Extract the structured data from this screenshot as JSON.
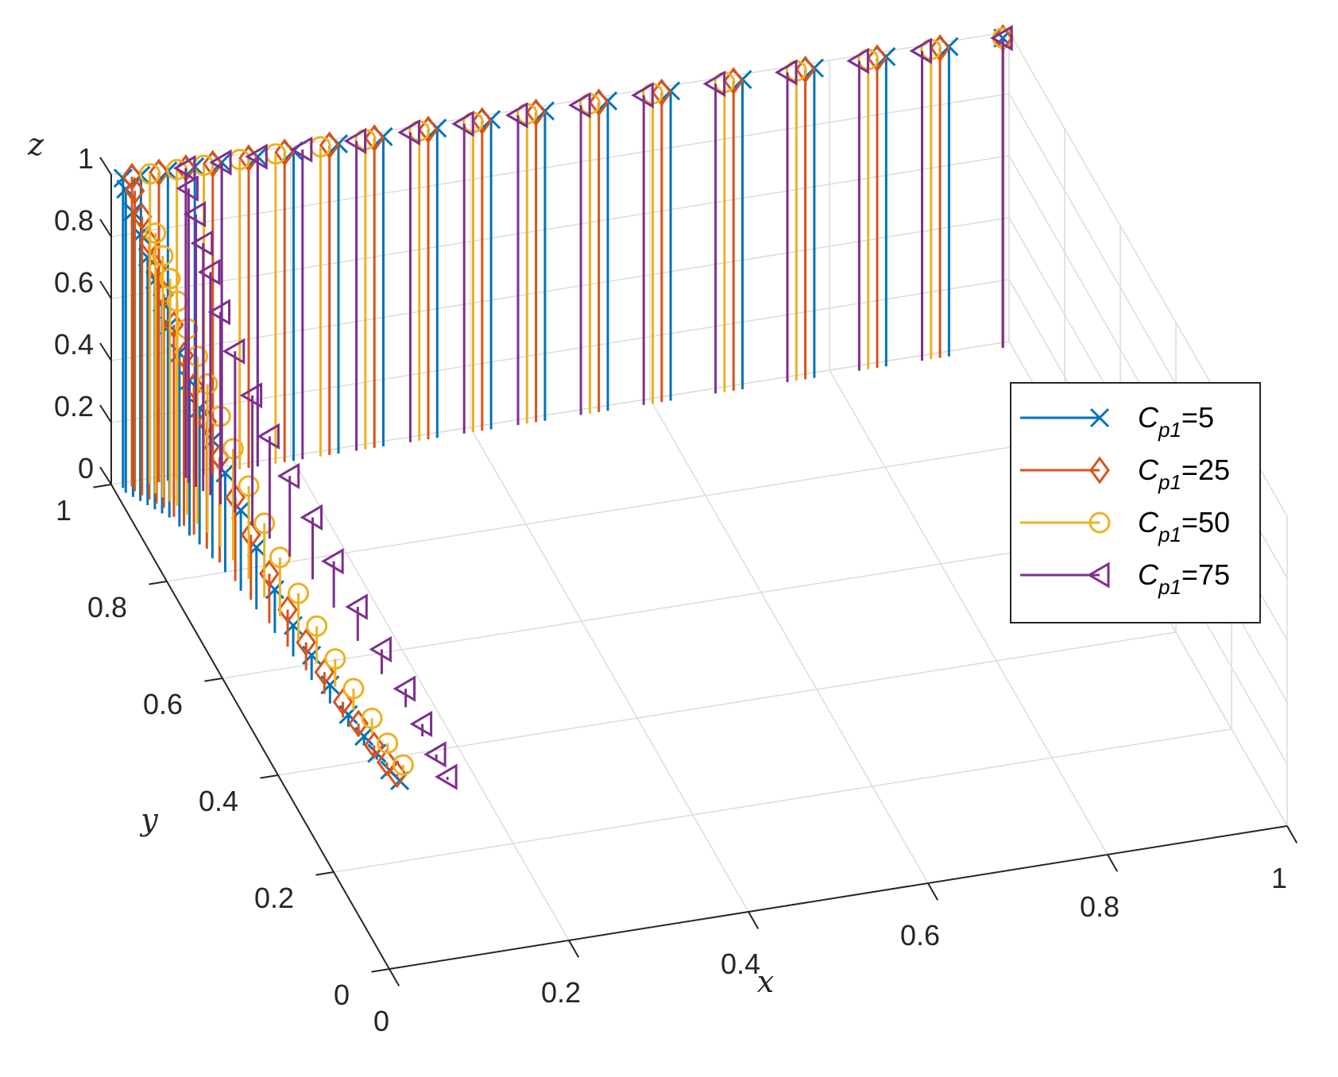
{
  "chart_data": {
    "type": "stem3",
    "title": "",
    "xlabel": "x",
    "ylabel": "y",
    "zlabel": "z",
    "xlim": [
      0,
      1
    ],
    "ylim": [
      0,
      1
    ],
    "zlim": [
      0,
      1
    ],
    "x_ticks": [
      "0",
      "0.2",
      "0.4",
      "0.6",
      "0.8",
      "1"
    ],
    "y_ticks": [
      "0",
      "0.2",
      "0.4",
      "0.6",
      "0.8",
      "1"
    ],
    "z_ticks": [
      "0",
      "0.2",
      "0.4",
      "0.6",
      "0.8",
      "1"
    ],
    "grid": true,
    "legend_position": "right",
    "series": [
      {
        "name": "C_p1=5",
        "legend_symbol": "C",
        "legend_sub": "p1",
        "legend_value": "=5",
        "marker": "x",
        "color": "#0072BD",
        "points": [
          [
            0.01,
            0.99,
            1.0
          ],
          [
            0.03,
            0.99,
            1.0
          ],
          [
            0.06,
            0.99,
            1.0
          ],
          [
            0.09,
            0.99,
            1.0
          ],
          [
            0.12,
            0.99,
            1.0
          ],
          [
            0.16,
            0.99,
            1.0
          ],
          [
            0.2,
            0.99,
            1.0
          ],
          [
            0.25,
            0.99,
            1.0
          ],
          [
            0.3,
            0.99,
            1.0
          ],
          [
            0.36,
            0.99,
            1.0
          ],
          [
            0.42,
            0.99,
            1.0
          ],
          [
            0.48,
            0.99,
            1.0
          ],
          [
            0.55,
            0.99,
            1.0
          ],
          [
            0.62,
            0.99,
            1.0
          ],
          [
            0.7,
            0.99,
            1.0
          ],
          [
            0.78,
            0.99,
            1.0
          ],
          [
            0.86,
            0.99,
            1.0
          ],
          [
            0.93,
            0.99,
            1.0
          ],
          [
            0.99,
            0.99,
            1.0
          ],
          [
            0.01,
            0.98,
            0.98
          ],
          [
            0.015,
            0.97,
            0.92
          ],
          [
            0.02,
            0.96,
            0.86
          ],
          [
            0.025,
            0.95,
            0.8
          ],
          [
            0.03,
            0.94,
            0.74
          ],
          [
            0.035,
            0.93,
            0.68
          ],
          [
            0.04,
            0.92,
            0.62
          ],
          [
            0.045,
            0.9,
            0.56
          ],
          [
            0.05,
            0.88,
            0.5
          ],
          [
            0.055,
            0.86,
            0.44
          ],
          [
            0.06,
            0.83,
            0.38
          ],
          [
            0.065,
            0.8,
            0.32
          ],
          [
            0.07,
            0.76,
            0.26
          ],
          [
            0.075,
            0.72,
            0.2
          ],
          [
            0.08,
            0.67,
            0.14
          ],
          [
            0.085,
            0.62,
            0.1
          ],
          [
            0.09,
            0.57,
            0.08
          ],
          [
            0.095,
            0.52,
            0.06
          ],
          [
            0.1,
            0.47,
            0.04
          ],
          [
            0.105,
            0.43,
            0.03
          ],
          [
            0.11,
            0.4,
            0.02
          ],
          [
            0.115,
            0.37,
            0.01
          ],
          [
            0.12,
            0.35,
            0.005
          ]
        ]
      },
      {
        "name": "C_p1=25",
        "legend_symbol": "C",
        "legend_sub": "p1",
        "legend_value": "=25",
        "marker": "diamond",
        "color": "#D95319",
        "points": [
          [
            0.02,
            0.99,
            1.0
          ],
          [
            0.05,
            0.99,
            1.0
          ],
          [
            0.08,
            0.99,
            1.0
          ],
          [
            0.11,
            0.99,
            1.0
          ],
          [
            0.15,
            0.99,
            1.0
          ],
          [
            0.19,
            0.99,
            1.0
          ],
          [
            0.24,
            0.99,
            1.0
          ],
          [
            0.29,
            0.99,
            1.0
          ],
          [
            0.35,
            0.99,
            1.0
          ],
          [
            0.41,
            0.99,
            1.0
          ],
          [
            0.47,
            0.99,
            1.0
          ],
          [
            0.54,
            0.99,
            1.0
          ],
          [
            0.61,
            0.99,
            1.0
          ],
          [
            0.69,
            0.99,
            1.0
          ],
          [
            0.77,
            0.99,
            1.0
          ],
          [
            0.85,
            0.99,
            1.0
          ],
          [
            0.92,
            0.99,
            1.0
          ],
          [
            0.99,
            0.99,
            1.0
          ],
          [
            0.02,
            0.98,
            0.97
          ],
          [
            0.025,
            0.97,
            0.9
          ],
          [
            0.03,
            0.96,
            0.83
          ],
          [
            0.035,
            0.95,
            0.76
          ],
          [
            0.04,
            0.94,
            0.69
          ],
          [
            0.045,
            0.92,
            0.62
          ],
          [
            0.05,
            0.9,
            0.55
          ],
          [
            0.055,
            0.88,
            0.48
          ],
          [
            0.06,
            0.85,
            0.41
          ],
          [
            0.065,
            0.82,
            0.34
          ],
          [
            0.07,
            0.78,
            0.27
          ],
          [
            0.075,
            0.74,
            0.21
          ],
          [
            0.08,
            0.69,
            0.16
          ],
          [
            0.085,
            0.64,
            0.12
          ],
          [
            0.09,
            0.59,
            0.09
          ],
          [
            0.095,
            0.54,
            0.07
          ],
          [
            0.1,
            0.49,
            0.05
          ],
          [
            0.105,
            0.45,
            0.04
          ],
          [
            0.11,
            0.41,
            0.03
          ],
          [
            0.115,
            0.38,
            0.02
          ],
          [
            0.12,
            0.36,
            0.01
          ]
        ]
      },
      {
        "name": "C_p1=50",
        "legend_symbol": "C",
        "legend_sub": "p1",
        "legend_value": "=50",
        "marker": "o",
        "color": "#EDB120",
        "points": [
          [
            0.04,
            0.99,
            1.0
          ],
          [
            0.07,
            0.99,
            1.0
          ],
          [
            0.1,
            0.99,
            1.0
          ],
          [
            0.14,
            0.99,
            1.0
          ],
          [
            0.18,
            0.99,
            1.0
          ],
          [
            0.23,
            0.99,
            1.0
          ],
          [
            0.28,
            0.99,
            1.0
          ],
          [
            0.34,
            0.99,
            1.0
          ],
          [
            0.4,
            0.99,
            1.0
          ],
          [
            0.46,
            0.99,
            1.0
          ],
          [
            0.53,
            0.99,
            1.0
          ],
          [
            0.6,
            0.99,
            1.0
          ],
          [
            0.68,
            0.99,
            1.0
          ],
          [
            0.76,
            0.99,
            1.0
          ],
          [
            0.84,
            0.99,
            1.0
          ],
          [
            0.91,
            0.99,
            1.0
          ],
          [
            0.99,
            0.99,
            1.0
          ],
          [
            0.04,
            0.97,
            0.84
          ],
          [
            0.045,
            0.96,
            0.78
          ],
          [
            0.05,
            0.95,
            0.72
          ],
          [
            0.055,
            0.94,
            0.66
          ],
          [
            0.06,
            0.92,
            0.6
          ],
          [
            0.065,
            0.9,
            0.54
          ],
          [
            0.07,
            0.88,
            0.48
          ],
          [
            0.075,
            0.85,
            0.42
          ],
          [
            0.08,
            0.82,
            0.36
          ],
          [
            0.085,
            0.78,
            0.3
          ],
          [
            0.09,
            0.74,
            0.24
          ],
          [
            0.095,
            0.7,
            0.19
          ],
          [
            0.1,
            0.65,
            0.15
          ],
          [
            0.105,
            0.6,
            0.12
          ],
          [
            0.11,
            0.55,
            0.09
          ],
          [
            0.115,
            0.5,
            0.07
          ],
          [
            0.12,
            0.45,
            0.05
          ],
          [
            0.125,
            0.41,
            0.03
          ],
          [
            0.13,
            0.37,
            0.02
          ]
        ]
      },
      {
        "name": "C_p1=75",
        "legend_symbol": "C",
        "legend_sub": "p1",
        "legend_value": "=75",
        "marker": "triangle-left",
        "color": "#7E2F8E",
        "points": [
          [
            0.08,
            0.99,
            1.0
          ],
          [
            0.12,
            0.99,
            1.0
          ],
          [
            0.16,
            0.99,
            1.0
          ],
          [
            0.21,
            0.99,
            1.0
          ],
          [
            0.27,
            0.99,
            1.0
          ],
          [
            0.33,
            0.99,
            1.0
          ],
          [
            0.39,
            0.99,
            1.0
          ],
          [
            0.45,
            0.99,
            1.0
          ],
          [
            0.52,
            0.99,
            1.0
          ],
          [
            0.59,
            0.99,
            1.0
          ],
          [
            0.67,
            0.99,
            1.0
          ],
          [
            0.75,
            0.99,
            1.0
          ],
          [
            0.83,
            0.99,
            1.0
          ],
          [
            0.9,
            0.99,
            1.0
          ],
          [
            0.99,
            0.99,
            1.0
          ],
          [
            0.08,
            0.98,
            0.95
          ],
          [
            0.085,
            0.97,
            0.88
          ],
          [
            0.09,
            0.96,
            0.8
          ],
          [
            0.095,
            0.95,
            0.72
          ],
          [
            0.1,
            0.93,
            0.62
          ],
          [
            0.11,
            0.91,
            0.52
          ],
          [
            0.12,
            0.88,
            0.42
          ],
          [
            0.13,
            0.85,
            0.33
          ],
          [
            0.14,
            0.81,
            0.26
          ],
          [
            0.15,
            0.76,
            0.2
          ],
          [
            0.155,
            0.7,
            0.15
          ],
          [
            0.16,
            0.63,
            0.11
          ],
          [
            0.165,
            0.56,
            0.08
          ],
          [
            0.17,
            0.49,
            0.06
          ],
          [
            0.17,
            0.43,
            0.04
          ],
          [
            0.17,
            0.38,
            0.02
          ],
          [
            0.17,
            0.34,
            0.01
          ]
        ]
      }
    ]
  }
}
